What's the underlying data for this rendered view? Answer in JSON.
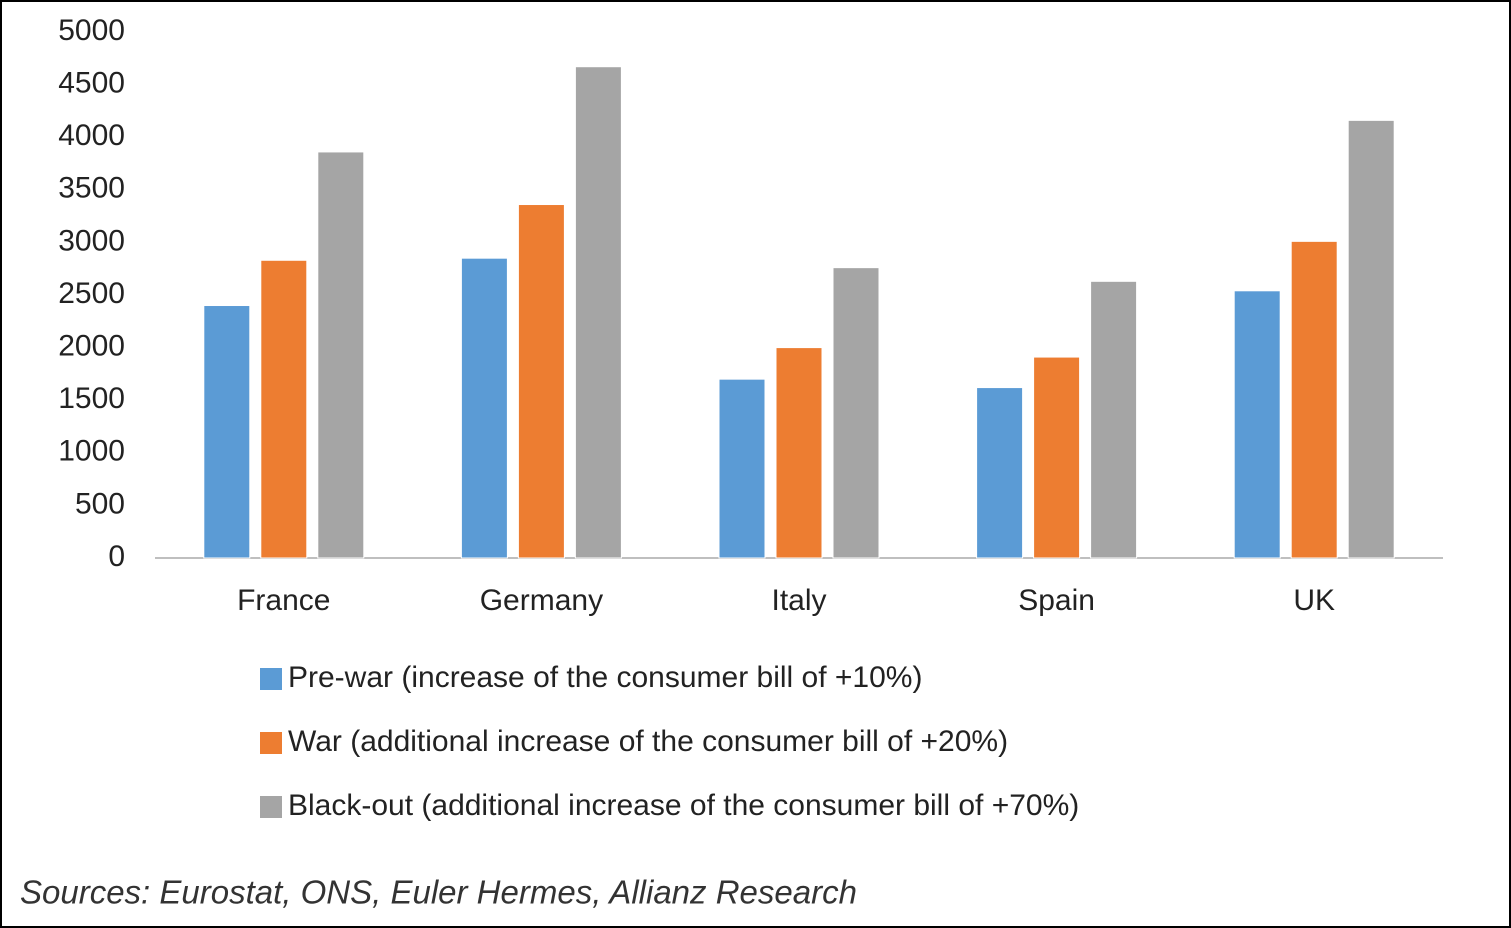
{
  "chart_data": {
    "type": "bar",
    "categories": [
      "France",
      "Germany",
      "Italy",
      "Spain",
      "UK"
    ],
    "series": [
      {
        "name": "Pre-war (increase of the consumer bill of +10%)",
        "color": "#5b9bd5",
        "values": [
          2400,
          2850,
          1700,
          1620,
          2540
        ]
      },
      {
        "name": "War (additional increase of the consumer bill of +20%)",
        "color": "#ed7d31",
        "values": [
          2830,
          3360,
          2000,
          1910,
          3010
        ]
      },
      {
        "name": "Black-out (additional increase of the consumer bill of +70%)",
        "color": "#a5a5a5",
        "values": [
          3860,
          4670,
          2760,
          2630,
          4160
        ]
      }
    ],
    "ylim": [
      0,
      5000
    ],
    "yticks": [
      0,
      500,
      1000,
      1500,
      2000,
      2500,
      3000,
      3500,
      4000,
      4500,
      5000
    ],
    "grid": false,
    "legend": "bottom",
    "source": "Sources: Eurostat, ONS, Euler Hermes, Allianz Research"
  }
}
